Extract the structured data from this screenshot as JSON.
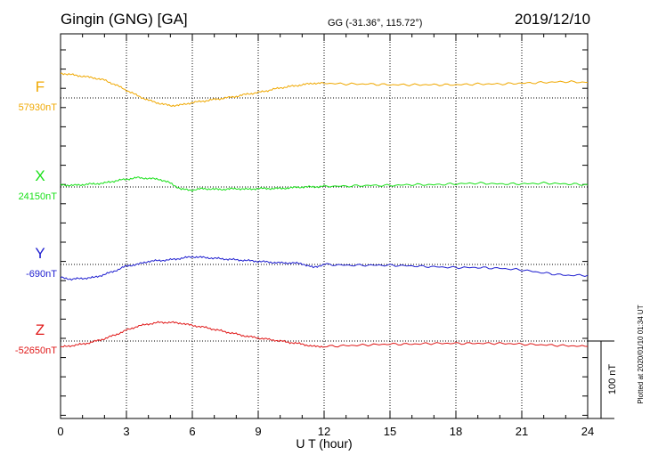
{
  "header": {
    "station": "Gingin (GNG)  [GA]",
    "coords": "GG (-31.36°, 115.72°)",
    "date": "2019/12/10"
  },
  "footer": {
    "plotted": "Plotted at 2020/01/10 01:34 UT",
    "scale_label": "100 nT"
  },
  "chart_data": {
    "type": "line",
    "title": "Gingin (GNG)  [GA]",
    "xlabel": "U T (hour)",
    "ylabel": "",
    "xlim": [
      0,
      24
    ],
    "xticks": [
      "0",
      "3",
      "6",
      "9",
      "12",
      "15",
      "18",
      "21",
      "24"
    ],
    "grid": true,
    "scale_bar_nT": 100,
    "series": [
      {
        "name": "F",
        "baseline_label": "57930nT",
        "color": "#f0a800",
        "baseline_nT": 57930,
        "x": [
          0,
          0.5,
          1,
          1.5,
          2,
          2.5,
          3,
          3.5,
          4,
          4.5,
          5,
          5.5,
          6,
          6.5,
          7,
          7.5,
          8,
          8.5,
          9,
          9.5,
          10,
          10.5,
          11,
          11.5,
          12,
          13,
          14,
          15,
          16,
          17,
          18,
          19,
          20,
          21,
          22,
          23,
          24
        ],
        "values": [
          32,
          30,
          28,
          26,
          23,
          17,
          10,
          3,
          -3,
          -7,
          -10,
          -9,
          -6,
          -4,
          -2,
          0,
          2,
          5,
          7,
          10,
          13,
          15,
          17,
          19,
          19,
          18,
          18,
          17,
          17,
          17,
          17,
          18,
          18,
          19,
          20,
          21,
          20
        ]
      },
      {
        "name": "X",
        "baseline_label": "24150nT",
        "color": "#18e018",
        "baseline_nT": 24150,
        "x": [
          0,
          0.5,
          1,
          1.5,
          2,
          2.5,
          3,
          3.5,
          4,
          4.5,
          5,
          5.5,
          6,
          6.5,
          7,
          7.5,
          8,
          8.5,
          9,
          9.5,
          10,
          10.5,
          11,
          11.5,
          12,
          13,
          14,
          15,
          16,
          17,
          18,
          19,
          20,
          21,
          22,
          23,
          24
        ],
        "values": [
          3,
          2,
          3,
          4,
          5,
          8,
          10,
          12,
          11,
          10,
          5,
          -3,
          -4,
          -2,
          -3,
          -3,
          -2,
          -3,
          -2,
          -2,
          -2,
          -1,
          0,
          0,
          1,
          1,
          2,
          2,
          3,
          3,
          4,
          5,
          4,
          4,
          5,
          4,
          3
        ]
      },
      {
        "name": "Y",
        "baseline_label": "-690nT",
        "color": "#2020d0",
        "baseline_nT": -690,
        "x": [
          0,
          0.5,
          1,
          1.5,
          2,
          2.5,
          3,
          3.5,
          4,
          4.5,
          5,
          5.5,
          6,
          6.5,
          7,
          7.5,
          8,
          8.5,
          9,
          9.5,
          10,
          10.5,
          11,
          11.5,
          12,
          13,
          14,
          15,
          16,
          17,
          18,
          19,
          20,
          21,
          22,
          23,
          24
        ],
        "values": [
          -17,
          -19,
          -18,
          -17,
          -13,
          -8,
          -2,
          0,
          4,
          5,
          6,
          8,
          10,
          9,
          8,
          7,
          6,
          5,
          4,
          3,
          2,
          2,
          1,
          -4,
          0,
          -1,
          -1,
          -1,
          -2,
          -3,
          -4,
          -4,
          -5,
          -7,
          -11,
          -14,
          -14
        ]
      },
      {
        "name": "Z",
        "baseline_label": "-52650nT",
        "color": "#e01818",
        "baseline_nT": -52650,
        "x": [
          0,
          0.5,
          1,
          1.5,
          2,
          2.5,
          3,
          3.5,
          4,
          4.5,
          5,
          5.5,
          6,
          6.5,
          7,
          7.5,
          8,
          8.5,
          9,
          9.5,
          10,
          10.5,
          11,
          11.5,
          12,
          13,
          14,
          15,
          16,
          17,
          18,
          19,
          20,
          21,
          22,
          23,
          24
        ],
        "values": [
          -8,
          -6,
          -4,
          -1,
          3,
          8,
          14,
          19,
          22,
          24,
          24,
          23,
          20,
          18,
          15,
          12,
          9,
          6,
          4,
          2,
          0,
          -2,
          -4,
          -7,
          -7,
          -6,
          -5,
          -4,
          -4,
          -3,
          -3,
          -3,
          -3,
          -4,
          -5,
          -6,
          -7
        ]
      }
    ]
  }
}
